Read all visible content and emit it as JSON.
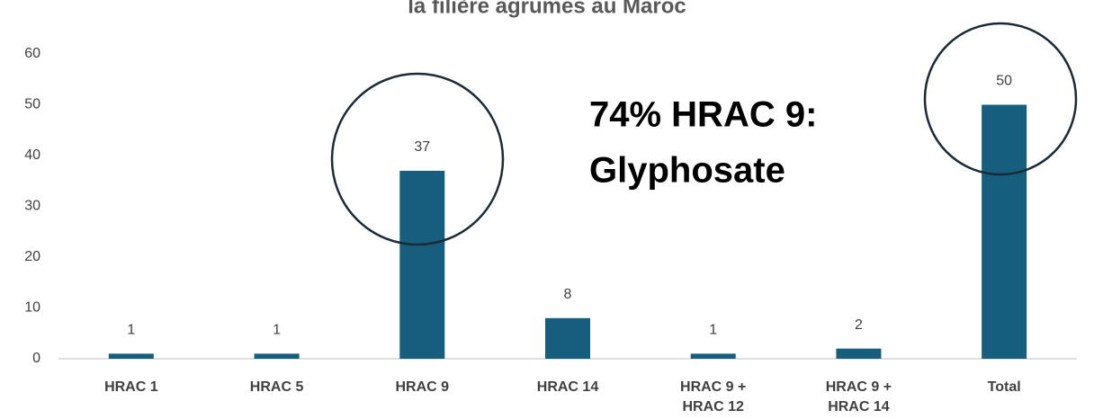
{
  "chart_data": {
    "type": "bar",
    "title": "la filière agrumes au Maroc",
    "categories": [
      "HRAC 1",
      "HRAC 5",
      "HRAC 9",
      "HRAC 14",
      "HRAC 9 + HRAC 12",
      "HRAC 9 + HRAC 14",
      "Total"
    ],
    "values": [
      1,
      1,
      37,
      8,
      1,
      2,
      50
    ],
    "color": "#175e7e",
    "ylim": [
      0,
      60
    ],
    "yticks": [
      0,
      10,
      20,
      30,
      40,
      50,
      60
    ],
    "annotation": [
      "74% HRAC 9:",
      "Glyphosate"
    ]
  }
}
